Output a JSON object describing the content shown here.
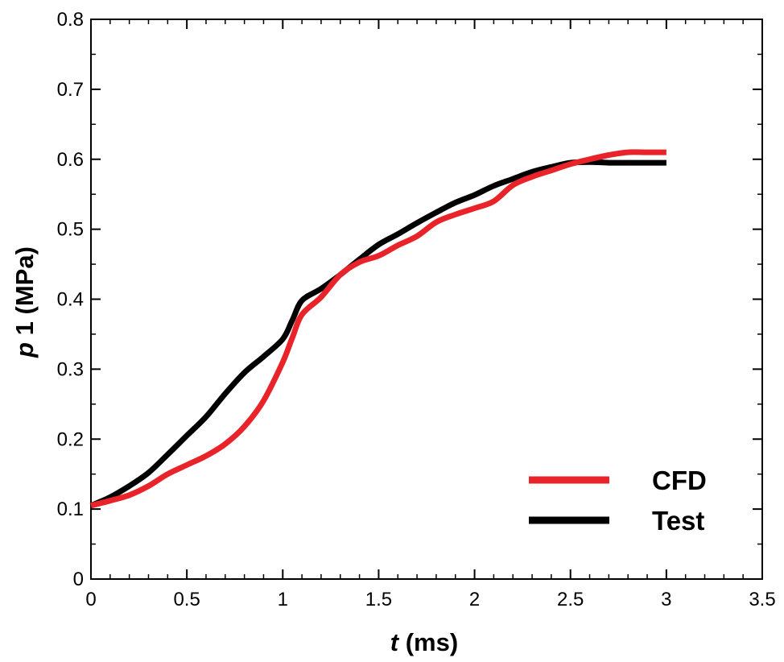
{
  "chart_data": {
    "type": "line",
    "title": "",
    "xlabel": {
      "symbol": "t",
      "unit": " (ms)"
    },
    "ylabel": {
      "symbol": "p",
      "rest": " 1 (MPa)"
    },
    "xlim": [
      0,
      3.5
    ],
    "ylim": [
      0,
      0.8
    ],
    "xticks": [
      0,
      0.5,
      1,
      1.5,
      2,
      2.5,
      3,
      3.5
    ],
    "xtick_labels": [
      "0",
      "0.5",
      "1",
      "1.5",
      "2",
      "2.5",
      "3",
      "3.5"
    ],
    "yticks": [
      0,
      0.1,
      0.2,
      0.3,
      0.4,
      0.5,
      0.6,
      0.7,
      0.8
    ],
    "ytick_labels": [
      "0",
      "0.1",
      "0.2",
      "0.3",
      "0.4",
      "0.5",
      "0.6",
      "0.7",
      "0.8"
    ],
    "grid": false,
    "legend_position": "bottom-right",
    "series": [
      {
        "name": "CFD",
        "color": "#e8242a",
        "x": [
          0,
          0.1,
          0.2,
          0.3,
          0.4,
          0.5,
          0.6,
          0.7,
          0.8,
          0.9,
          1.0,
          1.05,
          1.1,
          1.2,
          1.3,
          1.4,
          1.5,
          1.6,
          1.7,
          1.8,
          1.9,
          2.0,
          2.1,
          2.2,
          2.3,
          2.4,
          2.5,
          2.6,
          2.7,
          2.8,
          2.9,
          3.0
        ],
        "y": [
          0.105,
          0.112,
          0.12,
          0.133,
          0.15,
          0.163,
          0.176,
          0.193,
          0.218,
          0.255,
          0.31,
          0.345,
          0.378,
          0.403,
          0.435,
          0.453,
          0.462,
          0.477,
          0.49,
          0.51,
          0.521,
          0.53,
          0.54,
          0.563,
          0.575,
          0.584,
          0.593,
          0.6,
          0.606,
          0.61,
          0.61,
          0.61
        ]
      },
      {
        "name": "Test",
        "color": "#000000",
        "x": [
          0,
          0.1,
          0.2,
          0.3,
          0.4,
          0.5,
          0.6,
          0.7,
          0.8,
          0.9,
          1.0,
          1.05,
          1.1,
          1.2,
          1.3,
          1.4,
          1.5,
          1.6,
          1.7,
          1.8,
          1.9,
          2.0,
          2.1,
          2.2,
          2.3,
          2.4,
          2.5,
          2.6,
          2.7,
          2.8,
          2.9,
          3.0
        ],
        "y": [
          0.105,
          0.117,
          0.133,
          0.152,
          0.178,
          0.205,
          0.232,
          0.265,
          0.295,
          0.318,
          0.343,
          0.37,
          0.398,
          0.415,
          0.435,
          0.457,
          0.478,
          0.493,
          0.509,
          0.524,
          0.538,
          0.549,
          0.562,
          0.572,
          0.582,
          0.589,
          0.595,
          0.596,
          0.595,
          0.595,
          0.595,
          0.595
        ]
      }
    ]
  }
}
